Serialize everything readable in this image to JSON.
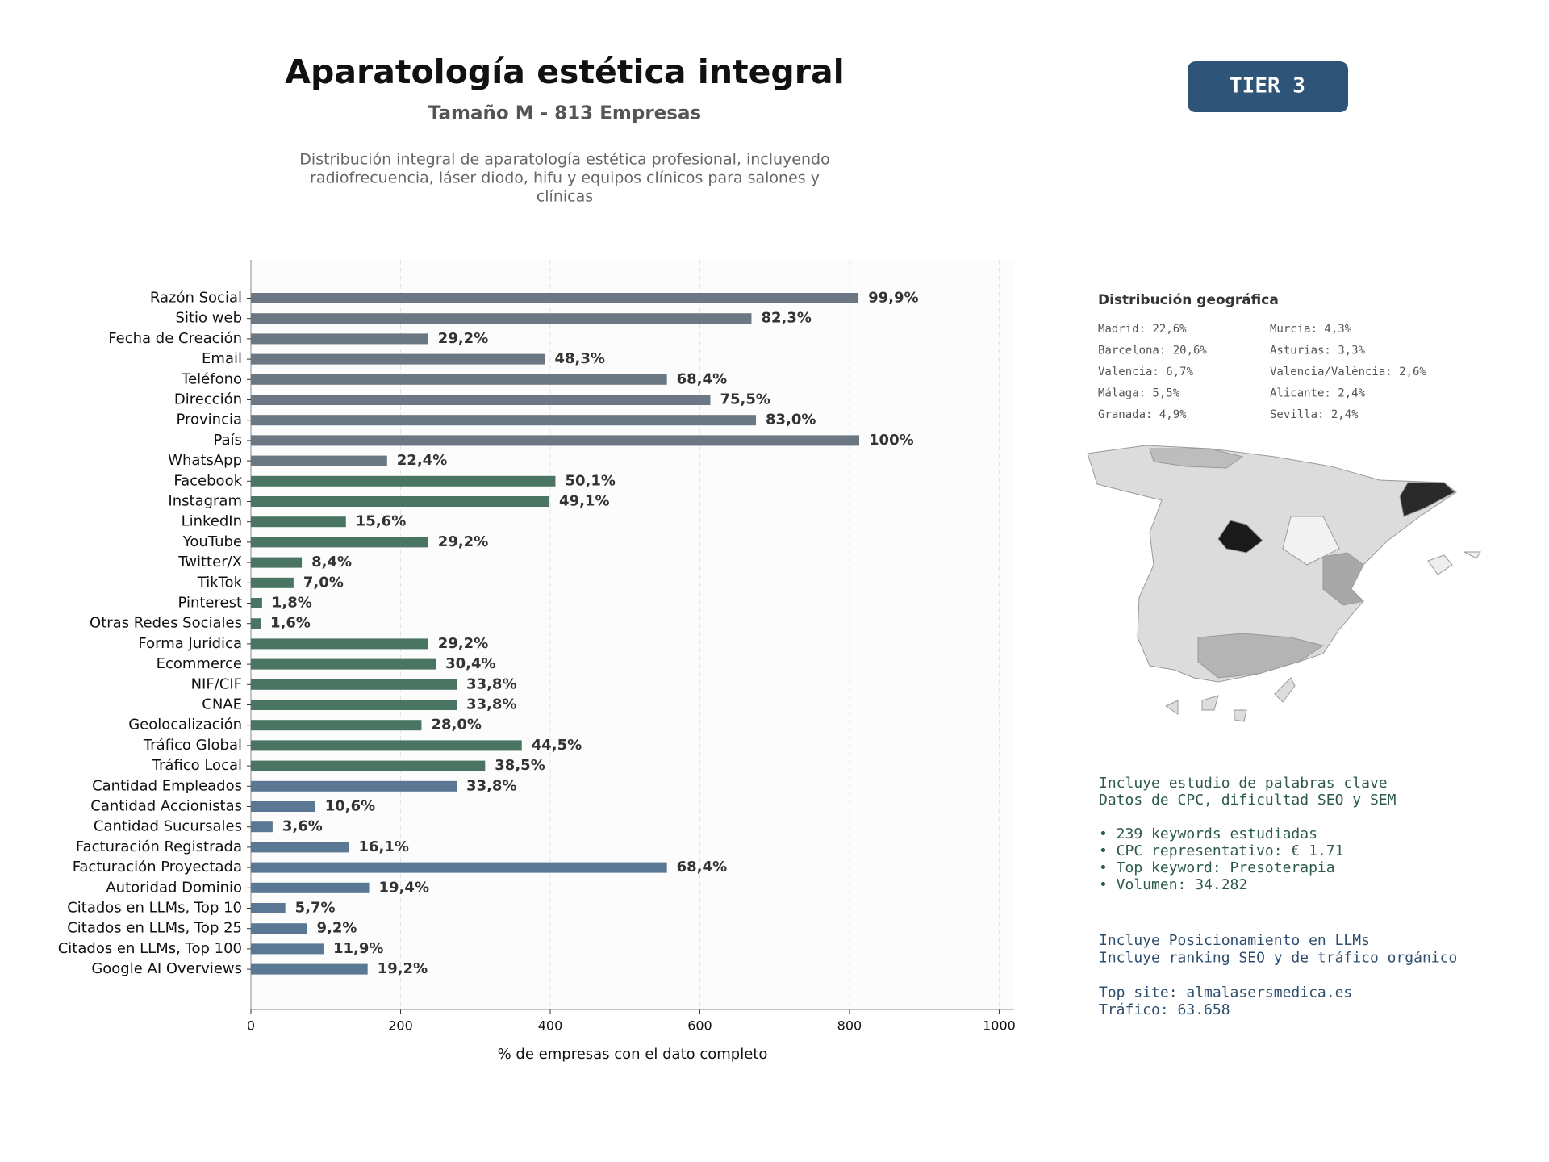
{
  "chart_data": {
    "type": "bar",
    "orientation": "horizontal",
    "title": "Aparatología estética integral",
    "subtitle": "Tamaño M - 813 Empresas",
    "description": [
      "Distribución integral de aparatología estética profesional, incluyendo",
      "radiofrecuencia, láser diodo, hifu y equipos clínicos para salones y",
      "clínicas"
    ],
    "xlabel": "% de empresas con el dato completo",
    "categories": [
      "Razón Social",
      "Sitio web",
      "Fecha de Creación",
      "Email",
      "Teléfono",
      "Dirección",
      "Provincia",
      "País",
      "WhatsApp",
      "Facebook",
      "Instagram",
      "LinkedIn",
      "YouTube",
      "Twitter/X",
      "TikTok",
      "Pinterest",
      "Otras Redes Sociales",
      "Forma Jurídica",
      "Ecommerce",
      "NIF/CIF",
      "CNAE",
      "Geolocalización",
      "Tráfico Global",
      "Tráfico Local",
      "Cantidad Empleados",
      "Cantidad Accionistas",
      "Cantidad Sucursales",
      "Facturación Registrada",
      "Facturación Proyectada",
      "Autoridad Dominio",
      "Citados en LLMs, Top 10",
      "Citados en LLMs, Top 25",
      "Citados en LLMs, Top 100",
      "Google AI Overviews"
    ],
    "values": [
      812,
      669,
      237,
      393,
      556,
      614,
      675,
      813,
      182,
      407,
      399,
      127,
      237,
      68,
      57,
      15,
      13,
      237,
      247,
      275,
      275,
      228,
      362,
      313,
      275,
      86,
      29,
      131,
      556,
      158,
      46,
      75,
      97,
      156
    ],
    "value_labels": [
      "99,9%",
      "82,3%",
      "29,2%",
      "48,3%",
      "68,4%",
      "75,5%",
      "83,0%",
      "100%",
      "22,4%",
      "50,1%",
      "49,1%",
      "15,6%",
      "29,2%",
      "8,4%",
      "7,0%",
      "1,8%",
      "1,6%",
      "29,2%",
      "30,4%",
      "33,8%",
      "33,8%",
      "28,0%",
      "44,5%",
      "38,5%",
      "33,8%",
      "10,6%",
      "3,6%",
      "16,1%",
      "68,4%",
      "19,4%",
      "5,7%",
      "9,2%",
      "11,9%",
      "19,2%"
    ],
    "colors": [
      "#6b7782",
      "#6b7782",
      "#6b7782",
      "#6b7782",
      "#6b7782",
      "#6b7782",
      "#6b7782",
      "#6b7782",
      "#6b7782",
      "#4a7563",
      "#4a7563",
      "#4a7563",
      "#4a7563",
      "#4a7563",
      "#4a7563",
      "#4a7563",
      "#4a7563",
      "#4a7563",
      "#4a7563",
      "#4a7563",
      "#4a7563",
      "#4a7563",
      "#4a7563",
      "#4a7563",
      "#5a7893",
      "#5a7893",
      "#5a7893",
      "#5a7893",
      "#5a7893",
      "#5a7893",
      "#5a7893",
      "#5a7893",
      "#5a7893",
      "#5a7893"
    ],
    "xlim": [
      0,
      1020
    ],
    "xticks": [
      0,
      200,
      400,
      600,
      800,
      1000
    ],
    "grid": true
  },
  "tier": "TIER 3",
  "geo": {
    "title": "Distribución geográfica",
    "left": [
      "Madrid: 22,6%",
      "Barcelona: 20,6%",
      "Valencia: 6,7%",
      "Málaga: 5,5%",
      "Granada: 4,9%"
    ],
    "right": [
      "Murcia: 4,3%",
      "Asturias: 3,3%",
      "Valencia/València: 2,6%",
      "Alicante: 2,4%",
      "Sevilla: 2,4%"
    ]
  },
  "keywords": [
    "Incluye estudio de palabras clave",
    "Datos de CPC, dificultad SEO y SEM",
    "",
    "• 239 keywords estudiadas",
    "• CPC representativo: € 1.71",
    "• Top keyword: Presoterapia",
    "• Volumen: 34.282"
  ],
  "seo": [
    "Incluye Posicionamiento en LLMs",
    "Incluye ranking SEO y de tráfico orgánico",
    "",
    "Top site: almalasersmedica.es",
    "Tráfico: 63.658"
  ]
}
